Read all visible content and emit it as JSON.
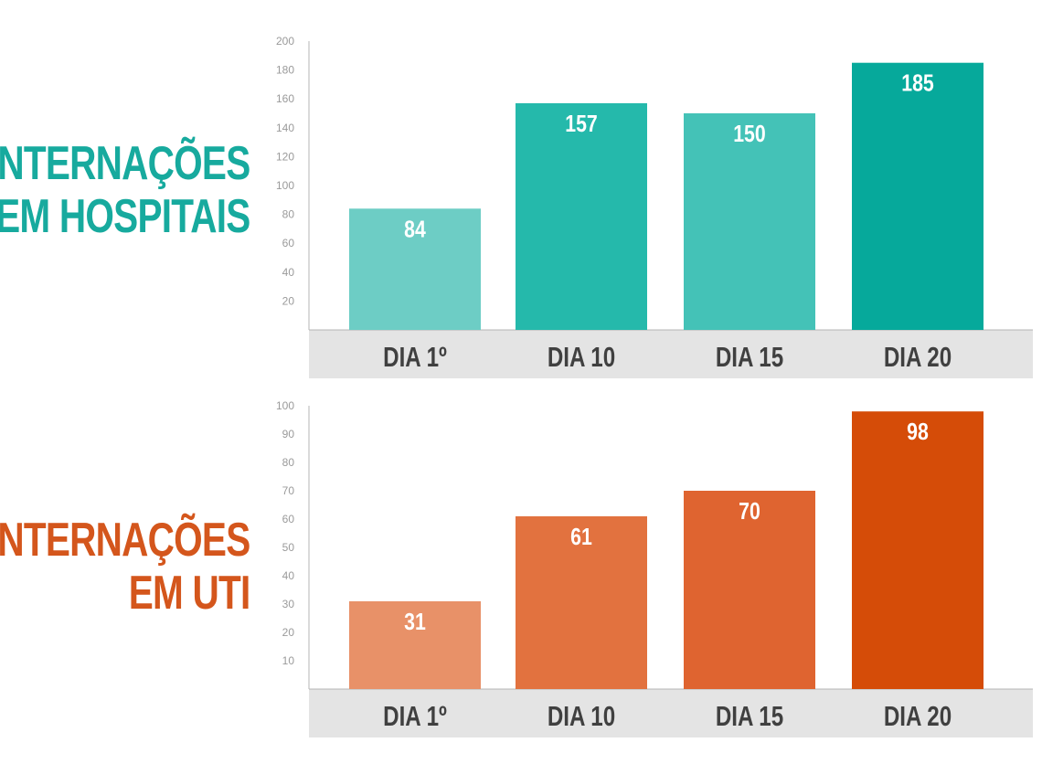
{
  "titles": {
    "hospitals": [
      "INTERNAÇÕES",
      "EM HOSPITAIS"
    ],
    "uti": [
      "INTERNAÇÕES",
      "EM UTI"
    ]
  },
  "colors": {
    "hospitals_title": "#17aa9e",
    "uti_title": "#d4561c",
    "hospitals_bars": [
      "#6dcdc5",
      "#25b9ab",
      "#44c2b7",
      "#06a99b"
    ],
    "uti_bars": [
      "#e89168",
      "#e2723f",
      "#df6430",
      "#d54c08"
    ],
    "category_band": "#e4e4e4",
    "axis": "#b5b5b5",
    "tick": "#9a9a9a",
    "category_text": "#404040",
    "value_text": "#ffffff"
  },
  "chart_data": [
    {
      "type": "bar",
      "title": "INTERNAÇÕES EM HOSPITAIS",
      "categories": [
        "DIA 1º",
        "DIA 10",
        "DIA 15",
        "DIA 20"
      ],
      "values": [
        84,
        157,
        150,
        185
      ],
      "data_labels": [
        "84",
        "157",
        "150",
        "185"
      ],
      "yticks": [
        20,
        40,
        60,
        80,
        100,
        120,
        140,
        160,
        180,
        200
      ],
      "ylim": [
        0,
        200
      ],
      "grid": false,
      "legend": "none"
    },
    {
      "type": "bar",
      "title": "INTERNAÇÕES EM UTI",
      "categories": [
        "DIA 1º",
        "DIA 10",
        "DIA 15",
        "DIA 20"
      ],
      "values": [
        31,
        61,
        70,
        98
      ],
      "data_labels": [
        "31",
        "61",
        "70",
        "98"
      ],
      "yticks": [
        10,
        20,
        30,
        40,
        50,
        60,
        70,
        80,
        90,
        100
      ],
      "ylim": [
        0,
        100
      ],
      "grid": false,
      "legend": "none"
    }
  ]
}
